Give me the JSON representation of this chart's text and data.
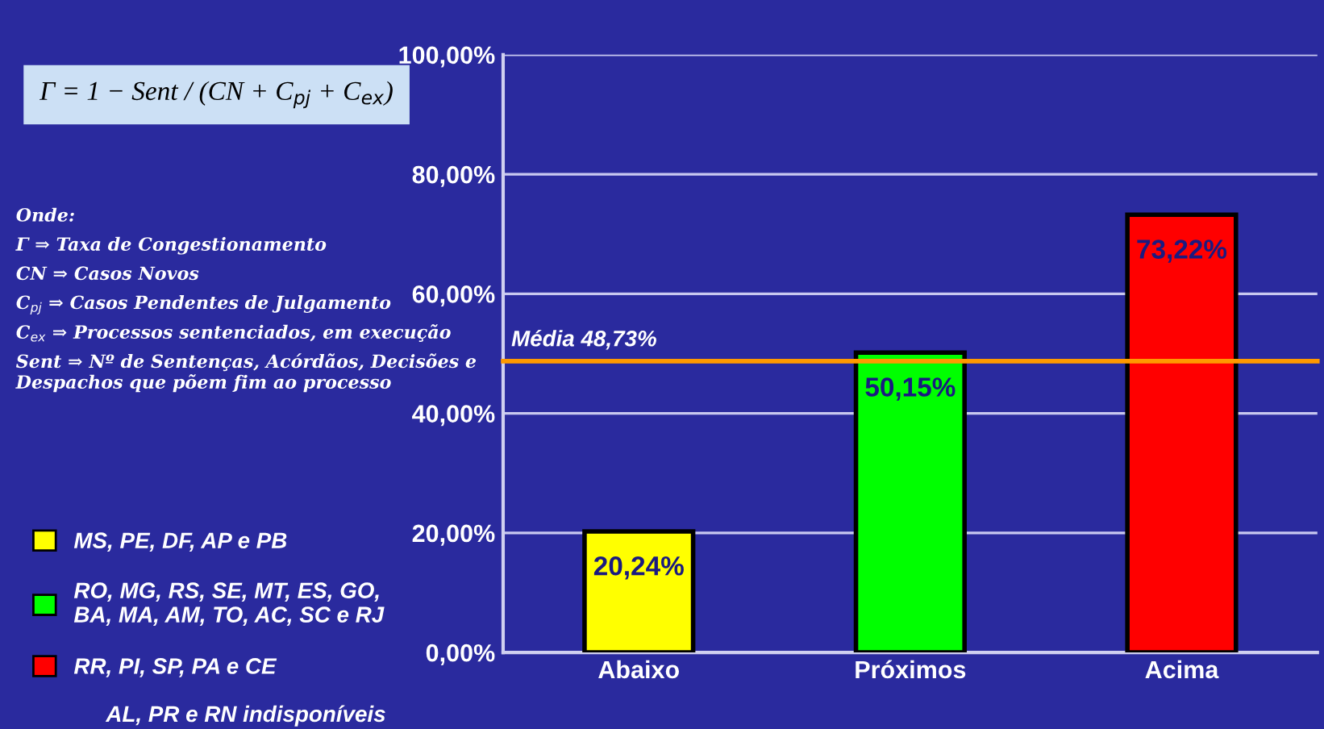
{
  "chart_data": {
    "type": "bar",
    "categories": [
      "Abaixo",
      "Próximos",
      "Acima"
    ],
    "series": [
      {
        "name": "MS, PE, DF, AP e PB",
        "color": "#ffff00",
        "values": [
          20.24,
          null,
          null
        ],
        "value_labels": [
          "20,24%",
          null,
          null
        ]
      },
      {
        "name": "RO, MG, RS, SE, MT, ES, GO,\nBA, MA, AM, TO, AC, SC e RJ",
        "color": "#00ff00",
        "values": [
          null,
          50.15,
          null
        ],
        "value_labels": [
          null,
          "50,15%",
          null
        ]
      },
      {
        "name": "RR, PI, SP, PA e CE",
        "color": "#ff0000",
        "values": [
          null,
          null,
          73.22
        ],
        "value_labels": [
          null,
          null,
          "73,22%"
        ]
      }
    ],
    "ylim": [
      0,
      100
    ],
    "yticks": [
      {
        "value": 0,
        "label": "0,00%"
      },
      {
        "value": 20,
        "label": "20,00%"
      },
      {
        "value": 40,
        "label": "40,00%"
      },
      {
        "value": 60,
        "label": "60,00%"
      },
      {
        "value": 80,
        "label": "80,00%"
      },
      {
        "value": 100,
        "label": "100,00%"
      }
    ],
    "grid": "y",
    "legend": "left",
    "ref_lines": [
      {
        "axis": "y",
        "value": 48.73,
        "label": "Média 48,73%",
        "color": "#ff9900"
      }
    ],
    "annotations": [
      "Γ = 1 − Sent / (CN + C$_{pj}$ + C$_{ex}$)",
      "Onde:",
      "Γ ⇒ Taxa de Congestionamento",
      "CN ⇒ Casos Novos",
      "C$_{pj}$ ⇒ Casos Pendentes de Julgamento",
      "C$_{ex}$ ⇒ Processos sentenciados, em execução",
      "Sent ⇒ Nº de Sentenças, Acórdãos, Decisões e\nDespachos que põem fim ao processo",
      "AL, PR e RN indisponíveis"
    ]
  }
}
